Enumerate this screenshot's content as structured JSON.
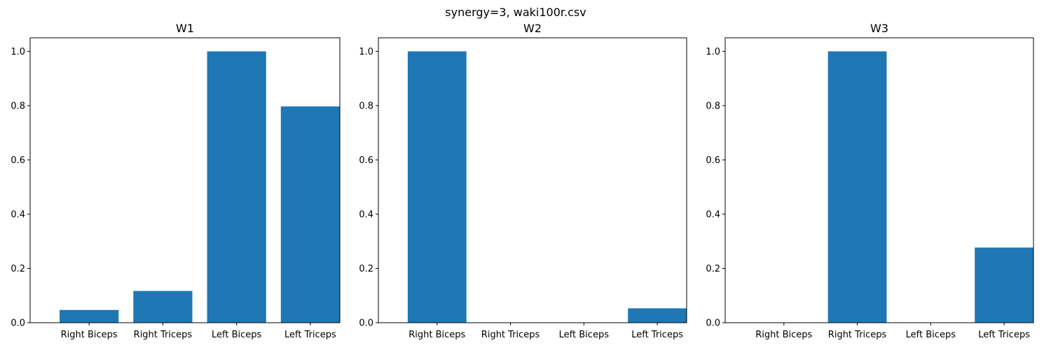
{
  "figure": {
    "suptitle": "synergy=3, waki100r.csv"
  },
  "chart_data": [
    {
      "type": "bar",
      "title": "W1",
      "xlabel": "",
      "ylabel": "",
      "categories": [
        "Right Biceps",
        "Right Triceps",
        "Left Biceps",
        "Left Triceps"
      ],
      "values": [
        0.047,
        0.117,
        1.0,
        0.797
      ],
      "ylim": [
        0,
        1.05
      ],
      "yticks": [
        "0.0",
        "0.2",
        "0.4",
        "0.6",
        "0.8",
        "1.0"
      ],
      "color": "#1f77b4",
      "grid": false
    },
    {
      "type": "bar",
      "title": "W2",
      "xlabel": "",
      "ylabel": "",
      "categories": [
        "Right Biceps",
        "Right Triceps",
        "Left Biceps",
        "Left Triceps"
      ],
      "values": [
        1.0,
        0.0,
        0.0,
        0.053
      ],
      "ylim": [
        0,
        1.05
      ],
      "yticks": [
        "0.0",
        "0.2",
        "0.4",
        "0.6",
        "0.8",
        "1.0"
      ],
      "color": "#1f77b4",
      "grid": false
    },
    {
      "type": "bar",
      "title": "W3",
      "xlabel": "",
      "ylabel": "",
      "categories": [
        "Right Biceps",
        "Right Triceps",
        "Left Biceps",
        "Left Triceps"
      ],
      "values": [
        0.0,
        1.0,
        0.0,
        0.277
      ],
      "ylim": [
        0,
        1.05
      ],
      "yticks": [
        "0.0",
        "0.2",
        "0.4",
        "0.6",
        "0.8",
        "1.0"
      ],
      "color": "#1f77b4",
      "grid": false
    }
  ]
}
